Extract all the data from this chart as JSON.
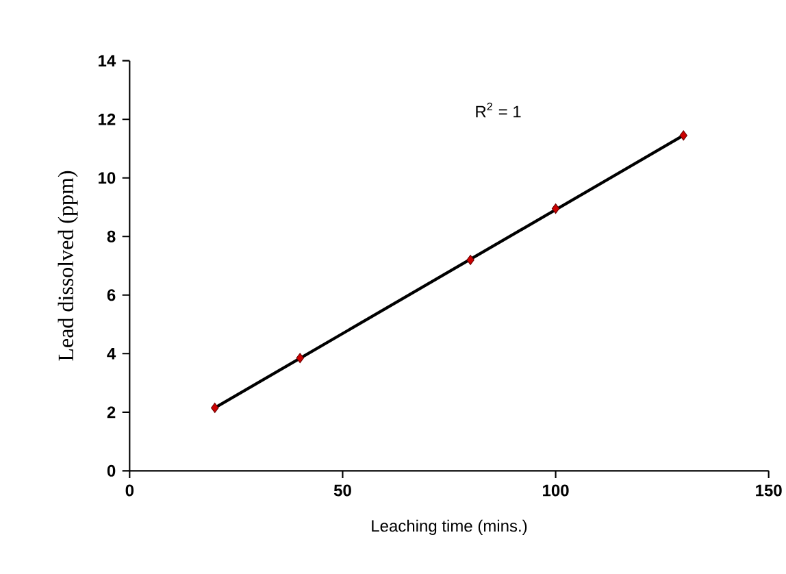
{
  "chart_data": {
    "type": "scatter",
    "xlabel": "Leaching time (mins.)",
    "ylabel": "Lead dissolved (ppm)",
    "xlim": [
      0,
      150
    ],
    "xticks": [
      0,
      50,
      100,
      150
    ],
    "ylim": [
      0,
      14
    ],
    "yticks": [
      0,
      2,
      4,
      6,
      8,
      10,
      12,
      14
    ],
    "grid": false,
    "series": [
      {
        "type": "line",
        "color": "#000000",
        "marker": "none",
        "x": [
          20,
          130
        ],
        "values": [
          2.15,
          11.45
        ]
      },
      {
        "color": "#cc0000",
        "marker": "diamond",
        "x": [
          20,
          40,
          80,
          100,
          130
        ],
        "values": [
          2.15,
          3.85,
          7.2,
          8.95,
          11.45
        ]
      }
    ],
    "annotations": [
      "R$^{2}$ = 1"
    ]
  }
}
